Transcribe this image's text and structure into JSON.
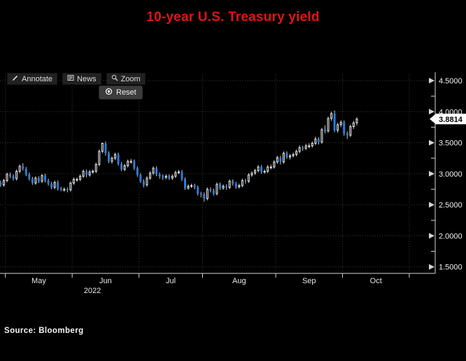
{
  "title": "10-year U.S. Treasury yield",
  "title_color": "#e41414",
  "toolbar": {
    "annotate_label": "Annotate",
    "news_label": "News",
    "zoom_label": "Zoom",
    "reset_label": "Reset"
  },
  "source_label": "Source: Bloomberg",
  "chart_data": {
    "type": "candlestick",
    "title": "10-year U.S. Treasury yield",
    "last_price": 3.8814,
    "last_price_label": "3.8814",
    "y_axis": {
      "min": 1.5,
      "max": 4.5,
      "major_tick_values": [
        4.5,
        4.0,
        3.5,
        3.0,
        2.5,
        2.0,
        1.5
      ],
      "major_tick_labels": [
        "4.5000",
        "4.0000",
        "3.5000",
        "3.0000",
        "2.5000",
        "2.0000",
        "1.5000"
      ],
      "minor_tick_values": [
        4.25,
        3.75,
        3.25,
        2.75,
        2.25,
        1.75
      ]
    },
    "x_axis": {
      "month_labels": [
        "May",
        "Jun",
        "Jul",
        "Aug",
        "Sep",
        "Oct"
      ],
      "month_start_indices": [
        2,
        23,
        44,
        64,
        87,
        108
      ],
      "end_boundary_index": 129,
      "year": "2022"
    },
    "grid": true,
    "colors": {
      "background": "#000000",
      "up": "#f5f5f5",
      "down": "#2b7bdb",
      "wick": "#c9c9c9",
      "grid": "#3e3e3e",
      "axis": "#d6d6d6",
      "badge_bg": "#ffffff",
      "badge_text": "#000000",
      "title": "#e41414"
    },
    "series_format": [
      "date",
      "open",
      "high",
      "low",
      "close"
    ],
    "series": [
      [
        "Apr 28",
        2.86,
        2.89,
        2.79,
        2.82
      ],
      [
        "Apr 29",
        2.82,
        2.92,
        2.79,
        2.89
      ],
      [
        "May 2",
        2.89,
        3.02,
        2.86,
        2.99
      ],
      [
        "May 3",
        2.99,
        3.02,
        2.93,
        2.96
      ],
      [
        "May 4",
        2.96,
        2.99,
        2.89,
        2.92
      ],
      [
        "May 5",
        2.92,
        3.07,
        2.89,
        3.04
      ],
      [
        "May 6",
        3.04,
        3.15,
        3.01,
        3.12
      ],
      [
        "May 9",
        3.12,
        3.17,
        3.05,
        3.08
      ],
      [
        "May 10",
        3.08,
        3.11,
        2.96,
        2.99
      ],
      [
        "May 11",
        2.99,
        3.02,
        2.89,
        2.92
      ],
      [
        "May 12",
        2.92,
        2.95,
        2.82,
        2.85
      ],
      [
        "May 13",
        2.85,
        2.96,
        2.82,
        2.93
      ],
      [
        "May 16",
        2.93,
        2.96,
        2.85,
        2.88
      ],
      [
        "May 17",
        2.88,
        3.0,
        2.85,
        2.97
      ],
      [
        "May 18",
        2.97,
        3.0,
        2.86,
        2.89
      ],
      [
        "May 19",
        2.89,
        2.92,
        2.81,
        2.84
      ],
      [
        "May 20",
        2.84,
        2.87,
        2.75,
        2.78
      ],
      [
        "May 23",
        2.78,
        2.89,
        2.75,
        2.86
      ],
      [
        "May 24",
        2.86,
        2.89,
        2.73,
        2.76
      ],
      [
        "May 25",
        2.76,
        2.79,
        2.72,
        2.75
      ],
      [
        "May 26",
        2.75,
        2.78,
        2.71,
        2.75
      ],
      [
        "May 27",
        2.75,
        2.78,
        2.7,
        2.74
      ],
      [
        "May 31",
        2.74,
        2.88,
        2.71,
        2.85
      ],
      [
        "Jun 1",
        2.85,
        2.94,
        2.82,
        2.91
      ],
      [
        "Jun 2",
        2.91,
        2.94,
        2.87,
        2.91
      ],
      [
        "Jun 3",
        2.91,
        2.99,
        2.88,
        2.96
      ],
      [
        "Jun 6",
        2.96,
        3.07,
        2.93,
        3.04
      ],
      [
        "Jun 7",
        3.04,
        3.07,
        2.94,
        2.98
      ],
      [
        "Jun 8",
        2.98,
        3.06,
        2.95,
        3.03
      ],
      [
        "Jun 9",
        3.03,
        3.07,
        3.0,
        3.04
      ],
      [
        "Jun 10",
        3.04,
        3.18,
        3.01,
        3.15
      ],
      [
        "Jun 13",
        3.15,
        3.39,
        3.12,
        3.36
      ],
      [
        "Jun 14",
        3.36,
        3.5,
        3.33,
        3.49
      ],
      [
        "Jun 15",
        3.49,
        3.52,
        3.29,
        3.33
      ],
      [
        "Jun 16",
        3.33,
        3.36,
        3.17,
        3.2
      ],
      [
        "Jun 17",
        3.2,
        3.28,
        3.16,
        3.25
      ],
      [
        "Jun 21",
        3.25,
        3.34,
        3.22,
        3.31
      ],
      [
        "Jun 22",
        3.31,
        3.34,
        3.13,
        3.16
      ],
      [
        "Jun 23",
        3.16,
        3.19,
        3.04,
        3.07
      ],
      [
        "Jun 24",
        3.07,
        3.16,
        3.04,
        3.13
      ],
      [
        "Jun 27",
        3.13,
        3.23,
        3.1,
        3.2
      ],
      [
        "Jun 28",
        3.2,
        3.24,
        3.16,
        3.2
      ],
      [
        "Jun 29",
        3.2,
        3.23,
        3.06,
        3.09
      ],
      [
        "Jun 30",
        3.09,
        3.12,
        2.95,
        2.98
      ],
      [
        "Jul 1",
        2.98,
        3.01,
        2.85,
        2.88
      ],
      [
        "Jul 5",
        2.88,
        2.91,
        2.78,
        2.82
      ],
      [
        "Jul 6",
        2.82,
        2.96,
        2.79,
        2.93
      ],
      [
        "Jul 7",
        2.93,
        3.04,
        2.9,
        3.01
      ],
      [
        "Jul 8",
        3.01,
        3.12,
        2.98,
        3.09
      ],
      [
        "Jul 11",
        3.09,
        3.12,
        2.96,
        2.99
      ],
      [
        "Jul 12",
        2.99,
        3.02,
        2.92,
        2.96
      ],
      [
        "Jul 13",
        2.96,
        2.99,
        2.9,
        2.94
      ],
      [
        "Jul 14",
        2.94,
        2.99,
        2.91,
        2.96
      ],
      [
        "Jul 15",
        2.96,
        2.99,
        2.9,
        2.93
      ],
      [
        "Jul 18",
        2.93,
        2.99,
        2.9,
        2.96
      ],
      [
        "Jul 19",
        2.96,
        3.05,
        2.93,
        3.02
      ],
      [
        "Jul 20",
        3.02,
        3.06,
        2.99,
        3.03
      ],
      [
        "Jul 21",
        3.03,
        3.06,
        2.88,
        2.91
      ],
      [
        "Jul 22",
        2.91,
        2.94,
        2.74,
        2.77
      ],
      [
        "Jul 25",
        2.77,
        2.83,
        2.74,
        2.8
      ],
      [
        "Jul 26",
        2.8,
        2.84,
        2.77,
        2.81
      ],
      [
        "Jul 27",
        2.81,
        2.84,
        2.75,
        2.78
      ],
      [
        "Jul 28",
        2.78,
        2.81,
        2.65,
        2.68
      ],
      [
        "Jul 29",
        2.68,
        2.71,
        2.62,
        2.67
      ],
      [
        "Aug 1",
        2.67,
        2.7,
        2.55,
        2.6
      ],
      [
        "Aug 2",
        2.6,
        2.78,
        2.57,
        2.75
      ],
      [
        "Aug 3",
        2.75,
        2.78,
        2.7,
        2.73
      ],
      [
        "Aug 4",
        2.73,
        2.76,
        2.65,
        2.68
      ],
      [
        "Aug 5",
        2.68,
        2.86,
        2.65,
        2.83
      ],
      [
        "Aug 8",
        2.83,
        2.86,
        2.74,
        2.77
      ],
      [
        "Aug 9",
        2.77,
        2.83,
        2.74,
        2.8
      ],
      [
        "Aug 10",
        2.8,
        2.83,
        2.74,
        2.78
      ],
      [
        "Aug 11",
        2.78,
        2.91,
        2.75,
        2.88
      ],
      [
        "Aug 12",
        2.88,
        2.91,
        2.81,
        2.84
      ],
      [
        "Aug 15",
        2.84,
        2.87,
        2.76,
        2.79
      ],
      [
        "Aug 16",
        2.79,
        2.84,
        2.76,
        2.81
      ],
      [
        "Aug 17",
        2.81,
        2.92,
        2.78,
        2.89
      ],
      [
        "Aug 18",
        2.89,
        2.92,
        2.84,
        2.88
      ],
      [
        "Aug 19",
        2.88,
        3.01,
        2.85,
        2.98
      ],
      [
        "Aug 22",
        2.98,
        3.04,
        2.95,
        3.01
      ],
      [
        "Aug 23",
        3.01,
        3.08,
        2.98,
        3.05
      ],
      [
        "Aug 24",
        3.05,
        3.14,
        3.02,
        3.11
      ],
      [
        "Aug 25",
        3.11,
        3.14,
        3.0,
        3.03
      ],
      [
        "Aug 26",
        3.03,
        3.07,
        3.0,
        3.04
      ],
      [
        "Aug 29",
        3.04,
        3.14,
        3.01,
        3.11
      ],
      [
        "Aug 30",
        3.11,
        3.15,
        3.07,
        3.11
      ],
      [
        "Aug 31",
        3.11,
        3.22,
        3.08,
        3.19
      ],
      [
        "Sep 1",
        3.19,
        3.29,
        3.16,
        3.26
      ],
      [
        "Sep 2",
        3.26,
        3.29,
        3.15,
        3.19
      ],
      [
        "Sep 6",
        3.19,
        3.36,
        3.16,
        3.33
      ],
      [
        "Sep 7",
        3.33,
        3.36,
        3.24,
        3.27
      ],
      [
        "Sep 8",
        3.27,
        3.32,
        3.23,
        3.29
      ],
      [
        "Sep 9",
        3.29,
        3.34,
        3.26,
        3.31
      ],
      [
        "Sep 12",
        3.31,
        3.39,
        3.28,
        3.36
      ],
      [
        "Sep 13",
        3.36,
        3.46,
        3.33,
        3.42
      ],
      [
        "Sep 14",
        3.42,
        3.45,
        3.37,
        3.41
      ],
      [
        "Sep 15",
        3.41,
        3.48,
        3.38,
        3.45
      ],
      [
        "Sep 16",
        3.45,
        3.49,
        3.41,
        3.45
      ],
      [
        "Sep 19",
        3.45,
        3.52,
        3.42,
        3.49
      ],
      [
        "Sep 20",
        3.49,
        3.6,
        3.46,
        3.56
      ],
      [
        "Sep 21",
        3.56,
        3.59,
        3.47,
        3.51
      ],
      [
        "Sep 22",
        3.51,
        3.74,
        3.48,
        3.71
      ],
      [
        "Sep 23",
        3.71,
        3.78,
        3.65,
        3.69
      ],
      [
        "Sep 26",
        3.69,
        3.92,
        3.66,
        3.89
      ],
      [
        "Sep 27",
        3.89,
        4.0,
        3.85,
        3.97
      ],
      [
        "Sep 28",
        3.97,
        4.02,
        3.67,
        3.7
      ],
      [
        "Sep 29",
        3.7,
        3.82,
        3.66,
        3.79
      ],
      [
        "Sep 30",
        3.79,
        3.86,
        3.75,
        3.83
      ],
      [
        "Oct 3",
        3.83,
        3.86,
        3.61,
        3.65
      ],
      [
        "Oct 4",
        3.65,
        3.68,
        3.56,
        3.62
      ],
      [
        "Oct 5",
        3.62,
        3.79,
        3.59,
        3.76
      ],
      [
        "Oct 6",
        3.76,
        3.85,
        3.72,
        3.82
      ],
      [
        "Oct 7",
        3.82,
        3.91,
        3.78,
        3.8814
      ]
    ]
  }
}
